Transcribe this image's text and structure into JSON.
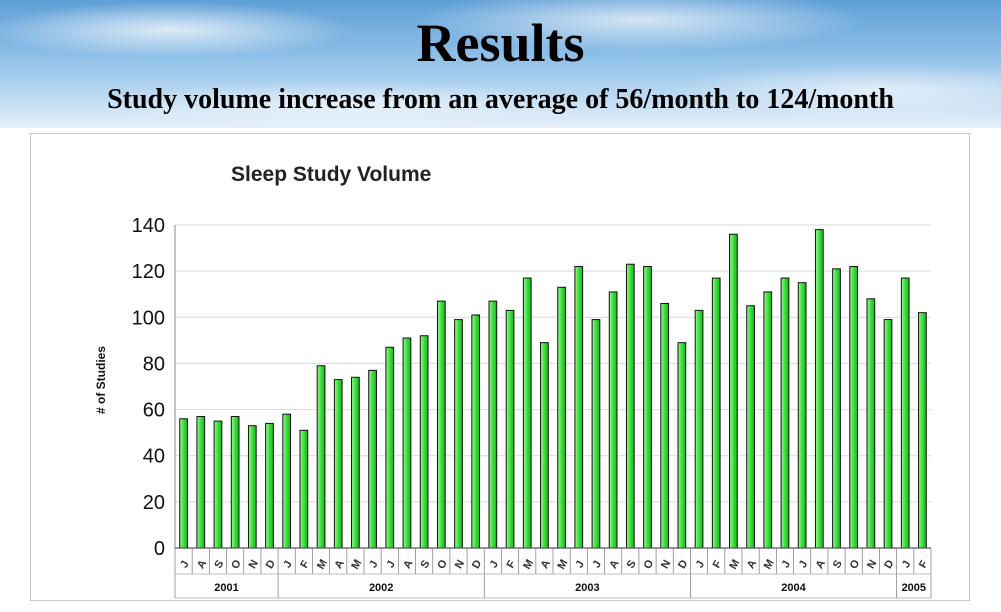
{
  "slide": {
    "title": "Results",
    "subtitle": "Study volume increase from an average of 56/month to 124/month"
  },
  "chart_data": {
    "type": "bar",
    "title": "Sleep Study Volume",
    "ylabel": "# of Studies",
    "xlabel": "",
    "ylim": [
      0,
      140
    ],
    "yticks": [
      0,
      20,
      40,
      60,
      80,
      100,
      120,
      140
    ],
    "grid": true,
    "bar_color": "#33dd33",
    "categories": [
      "J",
      "A",
      "S",
      "O",
      "N",
      "D",
      "J",
      "F",
      "M",
      "A",
      "M",
      "J",
      "J",
      "A",
      "S",
      "O",
      "N",
      "D",
      "J",
      "F",
      "M",
      "A",
      "M",
      "J",
      "J",
      "A",
      "S",
      "O",
      "N",
      "D",
      "J",
      "F",
      "M",
      "A",
      "M",
      "J",
      "J",
      "A",
      "S",
      "O",
      "N",
      "D",
      "J",
      "F"
    ],
    "values": [
      56,
      57,
      55,
      57,
      53,
      54,
      58,
      51,
      79,
      73,
      74,
      77,
      87,
      91,
      92,
      107,
      99,
      101,
      107,
      103,
      117,
      89,
      113,
      122,
      99,
      111,
      123,
      122,
      106,
      89,
      103,
      117,
      136,
      105,
      111,
      117,
      115,
      138,
      121,
      122,
      108,
      99,
      117,
      102
    ],
    "years": [
      {
        "label": "2001",
        "start": 0,
        "count": 6
      },
      {
        "label": "2002",
        "start": 6,
        "count": 12
      },
      {
        "label": "2003",
        "start": 18,
        "count": 12
      },
      {
        "label": "2004",
        "start": 30,
        "count": 12
      },
      {
        "label": "2005",
        "start": 42,
        "count": 2
      }
    ]
  }
}
